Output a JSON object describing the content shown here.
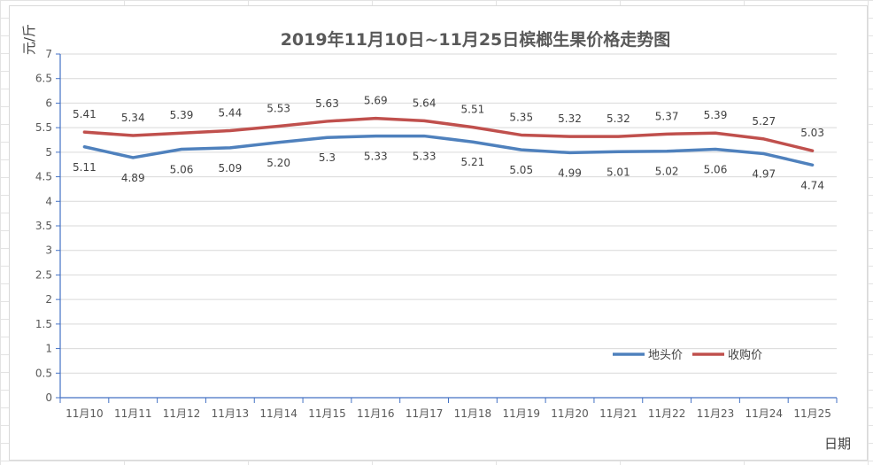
{
  "chart_data": {
    "type": "line",
    "title": "2019年11月10日~11月25日槟榔生果价格走势图",
    "xlabel": "日期",
    "ylabel": "元/斤",
    "ylim": [
      0,
      7
    ],
    "ytick_step": 0.5,
    "yticks": [
      "0",
      "0.5",
      "1",
      "1.5",
      "2",
      "2.5",
      "3",
      "3.5",
      "4",
      "4.5",
      "5",
      "5.5",
      "6",
      "6.5",
      "7"
    ],
    "grid": true,
    "legend_position": "bottom-right",
    "categories": [
      "11月10",
      "11月11",
      "11月12",
      "11月13",
      "11月14",
      "11月15",
      "11月16",
      "11月17",
      "11月18",
      "11月19",
      "11月20",
      "11月21",
      "11月22",
      "11月23",
      "11月24",
      "11月25"
    ],
    "series": [
      {
        "name": "地头价",
        "color": "#4F81BD",
        "values": [
          5.11,
          4.89,
          5.06,
          5.09,
          5.2,
          5.3,
          5.33,
          5.33,
          5.21,
          5.05,
          4.99,
          5.01,
          5.02,
          5.06,
          4.97,
          4.74
        ],
        "labels": [
          "5.11",
          "4.89",
          "5.06",
          "5.09",
          "5.20",
          "5.3",
          "5.33",
          "5.33",
          "5.21",
          "5.05",
          "4.99",
          "5.01",
          "5.02",
          "5.06",
          "4.97",
          "4.74"
        ],
        "label_position": "below"
      },
      {
        "name": "收购价",
        "color": "#C0504D",
        "values": [
          5.41,
          5.34,
          5.39,
          5.44,
          5.53,
          5.63,
          5.69,
          5.64,
          5.51,
          5.35,
          5.32,
          5.32,
          5.37,
          5.39,
          5.27,
          5.03
        ],
        "labels": [
          "5.41",
          "5.34",
          "5.39",
          "5.44",
          "5.53",
          "5.63",
          "5.69",
          "5.64",
          "5.51",
          "5.35",
          "5.32",
          "5.32",
          "5.37",
          "5.39",
          "5.27",
          "5.03"
        ],
        "label_position": "above"
      }
    ]
  }
}
